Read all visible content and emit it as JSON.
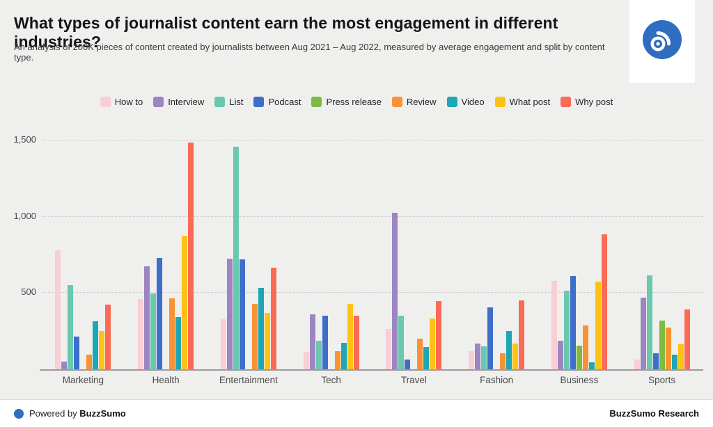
{
  "header": {
    "title": "What types of journalist content earn the most engagement in different industries?",
    "subtitle": "An analysis of 200K pieces of content created by journalists between Aug 2021 – Aug 2022, measured by average engagement and split by content type."
  },
  "logo": {
    "circle_color": "#2e6dc0",
    "glyph_color": "#ffffff"
  },
  "footer": {
    "powered_prefix": "Powered by",
    "powered_brand": "BuzzSumo",
    "right_text": "BuzzSumo Research",
    "dot_color": "#2e6dc0"
  },
  "chart_data": {
    "type": "bar",
    "title": "What types of journalist content earn the most engagement in different industries?",
    "xlabel": "",
    "ylabel": "",
    "ylim": [
      0,
      1573
    ],
    "grid": "dotted horizontal gridlines at yticks, solid baseline",
    "legend_position": "top center",
    "yticks": [
      500,
      1000,
      1500
    ],
    "ytick_labels": [
      "500",
      "1,000",
      "1,500"
    ],
    "categories": [
      "Marketing",
      "Health",
      "Entertainment",
      "Tech",
      "Travel",
      "Fashion",
      "Business",
      "Sports"
    ],
    "series": [
      {
        "name": "How to",
        "color": "#f9ced4",
        "values": [
          780,
          460,
          330,
          115,
          265,
          120,
          580,
          65
        ]
      },
      {
        "name": "Interview",
        "color": "#9d85c1",
        "values": [
          50,
          675,
          725,
          360,
          1025,
          170,
          185,
          470
        ]
      },
      {
        "name": "List",
        "color": "#69c8ad",
        "values": [
          550,
          495,
          1460,
          185,
          350,
          150,
          515,
          615
        ]
      },
      {
        "name": "Podcast",
        "color": "#3d6ec9",
        "values": [
          215,
          730,
          720,
          350,
          65,
          405,
          610,
          105
        ]
      },
      {
        "name": "Press release",
        "color": "#7dbb42",
        "values": [
          0,
          0,
          0,
          0,
          0,
          0,
          155,
          320
        ]
      },
      {
        "name": "Review",
        "color": "#f79333",
        "values": [
          95,
          465,
          430,
          120,
          200,
          105,
          285,
          275
        ]
      },
      {
        "name": "Video",
        "color": "#1ea6b4",
        "values": [
          315,
          340,
          535,
          175,
          145,
          250,
          45,
          95
        ]
      },
      {
        "name": "What post",
        "color": "#fdc216",
        "values": [
          250,
          875,
          370,
          430,
          335,
          170,
          575,
          165
        ]
      },
      {
        "name": "Why post",
        "color": "#fa6a55",
        "values": [
          425,
          1485,
          665,
          350,
          445,
          450,
          885,
          390
        ]
      }
    ]
  }
}
